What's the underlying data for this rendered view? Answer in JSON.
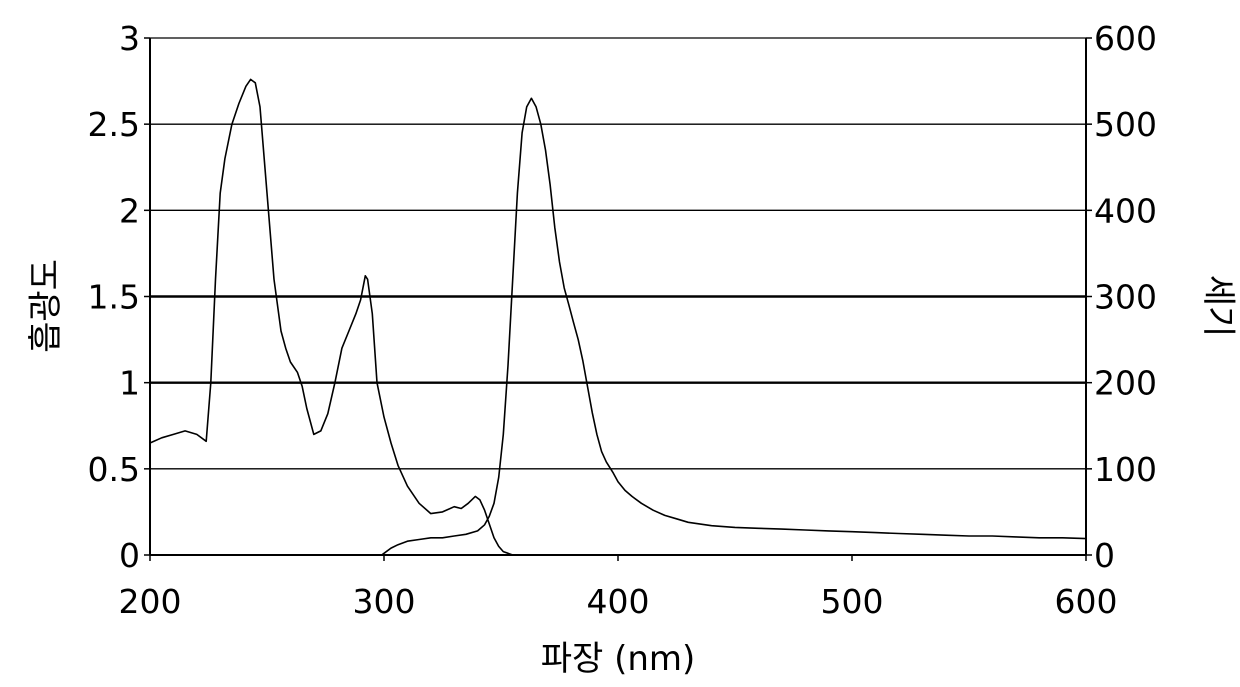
{
  "chart_data": {
    "type": "line",
    "xlabel": "파장 (nm)",
    "ylabel_left": "흡광도",
    "ylabel_right": "세기",
    "xlim": [
      200,
      600
    ],
    "ylim_left": [
      0,
      3
    ],
    "ylim_right": [
      0,
      600
    ],
    "x_ticks": [
      "200",
      "300",
      "400",
      "500",
      "600"
    ],
    "y_ticks_left": [
      "0",
      "0.5",
      "1",
      "1.5",
      "2",
      "2.5",
      "3"
    ],
    "y_ticks_right": [
      "0",
      "100",
      "200",
      "300",
      "400",
      "500",
      "600"
    ],
    "grid": true,
    "series": [
      {
        "axis": "left",
        "x": [
          200,
          205,
          210,
          215,
          220,
          224,
          226,
          228,
          230,
          232,
          235,
          238,
          241,
          243,
          245,
          247,
          250,
          253,
          256,
          258,
          260,
          263,
          265,
          267,
          270,
          273,
          276,
          279,
          282,
          285,
          288,
          290,
          292,
          293,
          295,
          297,
          300,
          303,
          306,
          310,
          315,
          320,
          325,
          330,
          333,
          336,
          339,
          341,
          343,
          345,
          347,
          349,
          351,
          355,
          360,
          400,
          450,
          500,
          550,
          600
        ],
        "y": [
          0.65,
          0.68,
          0.7,
          0.72,
          0.7,
          0.66,
          1.0,
          1.6,
          2.1,
          2.3,
          2.5,
          2.62,
          2.72,
          2.76,
          2.74,
          2.6,
          2.1,
          1.6,
          1.3,
          1.2,
          1.12,
          1.06,
          0.98,
          0.85,
          0.7,
          0.72,
          0.82,
          1.0,
          1.2,
          1.3,
          1.4,
          1.48,
          1.62,
          1.6,
          1.4,
          1.0,
          0.8,
          0.65,
          0.52,
          0.4,
          0.3,
          0.24,
          0.25,
          0.28,
          0.27,
          0.3,
          0.34,
          0.32,
          0.26,
          0.18,
          0.1,
          0.05,
          0.02,
          0.0,
          0.0,
          0.0,
          0.0,
          0.0,
          0.0,
          0.0
        ]
      },
      {
        "axis": "right",
        "x": [
          298,
          299,
          300,
          303,
          306,
          310,
          315,
          320,
          325,
          330,
          335,
          340,
          343,
          345,
          347,
          349,
          351,
          353,
          355,
          357,
          359,
          361,
          363,
          365,
          367,
          369,
          371,
          373,
          375,
          377,
          379,
          381,
          383,
          385,
          387,
          389,
          391,
          393,
          395,
          398,
          400,
          403,
          406,
          410,
          415,
          420,
          425,
          430,
          440,
          450,
          460,
          470,
          480,
          490,
          500,
          510,
          520,
          530,
          540,
          550,
          560,
          570,
          580,
          590,
          600
        ],
        "y": [
          0,
          0,
          2,
          8,
          12,
          16,
          18,
          20,
          20,
          22,
          24,
          28,
          35,
          45,
          60,
          90,
          140,
          220,
          320,
          420,
          490,
          520,
          530,
          520,
          500,
          470,
          430,
          380,
          340,
          310,
          290,
          270,
          250,
          225,
          195,
          165,
          140,
          120,
          108,
          95,
          85,
          75,
          68,
          60,
          52,
          46,
          42,
          38,
          34,
          32,
          31,
          30,
          29,
          28,
          27,
          26,
          25,
          24,
          23,
          22,
          22,
          21,
          20,
          20,
          19
        ]
      }
    ]
  }
}
